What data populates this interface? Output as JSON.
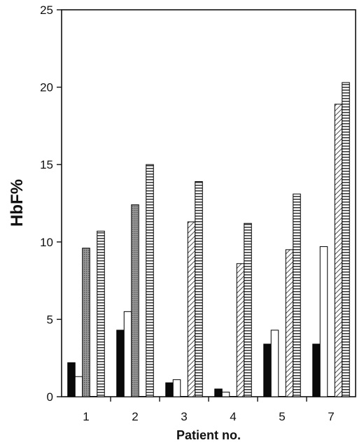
{
  "chart_data": {
    "type": "bar",
    "title": "",
    "xlabel": "Patient no.",
    "ylabel": "HbF%",
    "ylim": [
      0,
      25
    ],
    "yticks": [
      "0",
      "5",
      "10",
      "15",
      "20",
      "25"
    ],
    "categories": [
      "1",
      "2",
      "3",
      "4",
      "5",
      "7"
    ],
    "grid": false,
    "legend": "none",
    "series": [
      {
        "pattern": "solid-black",
        "values": [
          2.2,
          4.3,
          0.9,
          0.5,
          3.4,
          3.4
        ]
      },
      {
        "pattern": "white",
        "values": [
          1.3,
          5.5,
          1.1,
          0.3,
          4.3,
          9.7
        ]
      },
      {
        "pattern": "dotted-gray",
        "values": [
          9.6,
          12.4,
          0.0,
          0.0,
          0.0,
          0.0
        ]
      },
      {
        "pattern": "diagonal-hatch",
        "values": [
          0.0,
          0.0,
          11.3,
          8.6,
          9.5,
          18.9
        ]
      },
      {
        "pattern": "horizontal-lines",
        "values": [
          10.7,
          15.0,
          13.9,
          11.2,
          13.1,
          20.3
        ]
      }
    ],
    "colors": {
      "axis": "#111111",
      "black_bar": "#0a0a0a",
      "dotted_gray": "#8a8a8a"
    }
  }
}
